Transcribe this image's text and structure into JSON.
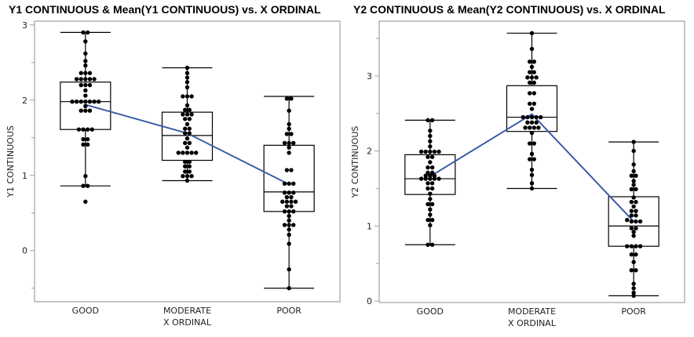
{
  "chart_data": [
    {
      "type": "box",
      "title": "Y1 CONTINUOUS & Mean(Y1 CONTINUOUS) vs. X ORDINAL",
      "xlabel": "X ORDINAL",
      "ylabel": "Y1 CONTINUOUS",
      "ylim": [
        -0.68,
        3.05
      ],
      "yticks": [
        0,
        1,
        2,
        3
      ],
      "yminor": [
        -0.5,
        0.5,
        1.5,
        2.5
      ],
      "categories": [
        "GOOD",
        "MODERATE",
        "POOR"
      ],
      "mean_line_color": "#3a5ba8",
      "groups": [
        {
          "name": "GOOD",
          "whisker_low": 0.86,
          "q1": 1.61,
          "median": 1.98,
          "q3": 2.24,
          "whisker_high": 2.9,
          "mean": 1.94,
          "points": [
            2.9,
            2.9,
            2.78,
            2.62,
            2.52,
            2.46,
            2.36,
            2.36,
            2.36,
            2.28,
            2.28,
            2.28,
            2.28,
            2.28,
            2.2,
            2.2,
            2.2,
            2.13,
            2.06,
            1.98,
            1.98,
            1.98,
            1.98,
            1.98,
            1.98,
            1.98,
            1.92,
            1.86,
            1.86,
            1.86,
            1.61,
            1.61,
            1.61,
            1.61,
            1.48,
            1.48,
            1.41,
            1.41,
            0.99,
            0.86,
            0.86,
            0.65
          ]
        },
        {
          "name": "MODERATE",
          "whisker_low": 0.93,
          "q1": 1.2,
          "median": 1.53,
          "q3": 1.84,
          "whisker_high": 2.43,
          "mean": 1.56,
          "points": [
            2.43,
            2.36,
            2.3,
            2.24,
            2.17,
            2.05,
            2.05,
            2.05,
            1.93,
            1.87,
            1.87,
            1.81,
            1.81,
            1.81,
            1.75,
            1.75,
            1.68,
            1.62,
            1.62,
            1.56,
            1.56,
            1.49,
            1.43,
            1.43,
            1.37,
            1.3,
            1.3,
            1.3,
            1.3,
            1.3,
            1.18,
            1.18,
            1.12,
            1.12,
            1.05,
            1.05,
            0.99,
            0.99,
            0.99,
            0.93
          ]
        },
        {
          "name": "POOR",
          "whisker_low": -0.5,
          "q1": 0.52,
          "median": 0.78,
          "q3": 1.4,
          "whisker_high": 2.05,
          "mean": 0.88,
          "points": [
            2.02,
            2.02,
            1.86,
            1.68,
            1.62,
            1.55,
            1.55,
            1.43,
            1.43,
            1.43,
            1.37,
            1.3,
            1.07,
            1.07,
            0.89,
            0.89,
            0.89,
            0.77,
            0.77,
            0.77,
            0.71,
            0.71,
            0.65,
            0.65,
            0.65,
            0.65,
            0.59,
            0.59,
            0.52,
            0.52,
            0.52,
            0.46,
            0.4,
            0.34,
            0.34,
            0.34,
            0.28,
            0.21,
            0.09,
            -0.25,
            -0.5
          ]
        }
      ]
    },
    {
      "type": "box",
      "title": "Y2 CONTINUOUS & Mean(Y2 CONTINUOUS) vs. X ORDINAL",
      "xlabel": "X ORDINAL",
      "ylabel": "Y2 CONTINUOUS",
      "ylim": [
        -0.02,
        3.73
      ],
      "yticks": [
        0,
        1,
        2,
        3
      ],
      "yminor": [
        0.5,
        1.5,
        2.5,
        3.5
      ],
      "categories": [
        "GOOD",
        "MODERATE",
        "POOR"
      ],
      "mean_line_color": "#3a5ba8",
      "groups": [
        {
          "name": "GOOD",
          "whisker_low": 0.75,
          "q1": 1.42,
          "median": 1.63,
          "q3": 1.95,
          "whisker_high": 2.41,
          "mean": 1.66,
          "points": [
            2.41,
            2.41,
            2.27,
            2.2,
            2.13,
            2.06,
            1.99,
            1.99,
            1.99,
            1.99,
            1.99,
            1.92,
            1.92,
            1.85,
            1.78,
            1.78,
            1.71,
            1.71,
            1.67,
            1.67,
            1.67,
            1.63,
            1.63,
            1.63,
            1.63,
            1.63,
            1.57,
            1.57,
            1.5,
            1.5,
            1.43,
            1.36,
            1.29,
            1.29,
            1.22,
            1.15,
            1.08,
            1.08,
            1.01,
            0.75,
            0.75
          ]
        },
        {
          "name": "MODERATE",
          "whisker_low": 1.5,
          "q1": 2.26,
          "median": 2.45,
          "q3": 2.87,
          "whisker_high": 3.57,
          "mean": 2.49,
          "points": [
            3.57,
            3.36,
            3.19,
            3.19,
            3.12,
            3.05,
            3.05,
            2.98,
            2.98,
            2.98,
            2.91,
            2.91,
            2.77,
            2.77,
            2.63,
            2.63,
            2.56,
            2.45,
            2.45,
            2.45,
            2.45,
            2.45,
            2.38,
            2.38,
            2.38,
            2.31,
            2.31,
            2.31,
            2.31,
            2.24,
            2.1,
            2.1,
            1.96,
            1.89,
            1.89,
            1.75,
            1.68,
            1.57,
            1.5
          ]
        },
        {
          "name": "POOR",
          "whisker_low": 0.07,
          "q1": 0.73,
          "median": 1.0,
          "q3": 1.39,
          "whisker_high": 2.12,
          "mean": 1.06,
          "points": [
            2.12,
            2.0,
            1.82,
            1.73,
            1.67,
            1.67,
            1.6,
            1.55,
            1.49,
            1.49,
            1.38,
            1.32,
            1.32,
            1.26,
            1.2,
            1.2,
            1.14,
            1.14,
            1.08,
            1.06,
            1.06,
            1.06,
            0.97,
            0.97,
            0.92,
            0.87,
            0.73,
            0.73,
            0.73,
            0.73,
            0.62,
            0.62,
            0.52,
            0.41,
            0.41,
            0.23,
            0.17,
            0.11,
            0.07
          ]
        }
      ]
    }
  ]
}
